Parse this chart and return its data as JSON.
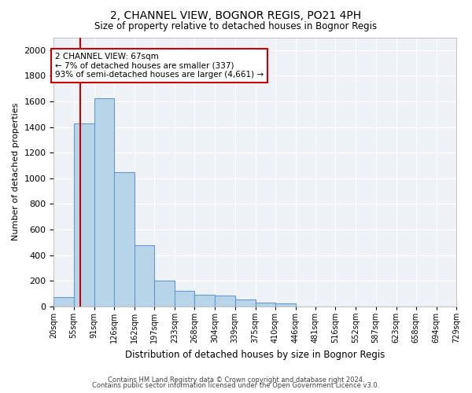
{
  "title": "2, CHANNEL VIEW, BOGNOR REGIS, PO21 4PH",
  "subtitle": "Size of property relative to detached houses in Bognor Regis",
  "xlabel": "Distribution of detached houses by size in Bognor Regis",
  "ylabel": "Number of detached properties",
  "bar_color": "#b8d4e8",
  "bar_edge_color": "#6699cc",
  "annotation_box_color": "#cc0000",
  "annotation_line_color": "#cc0000",
  "property_size": 67,
  "annotation_text": "2 CHANNEL VIEW: 67sqm\n← 7% of detached houses are smaller (337)\n93% of semi-detached houses are larger (4,661) →",
  "footer1": "Contains HM Land Registry data © Crown copyright and database right 2024.",
  "footer2": "Contains public sector information licensed under the Open Government Licence v3.0.",
  "bins": [
    20,
    55,
    91,
    126,
    162,
    197,
    233,
    268,
    304,
    339,
    375,
    410,
    446,
    481,
    516,
    552,
    587,
    623,
    658,
    694,
    729
  ],
  "counts": [
    75,
    1430,
    1625,
    1050,
    475,
    200,
    120,
    90,
    85,
    55,
    30,
    25,
    0,
    0,
    0,
    0,
    0,
    0,
    0,
    0
  ],
  "ylim": [
    0,
    2100
  ],
  "yticks": [
    0,
    200,
    400,
    600,
    800,
    1000,
    1200,
    1400,
    1600,
    1800,
    2000
  ],
  "background_color": "#eef2f7",
  "grid_color": "#ffffff",
  "figsize": [
    6.0,
    5.0
  ],
  "dpi": 100
}
